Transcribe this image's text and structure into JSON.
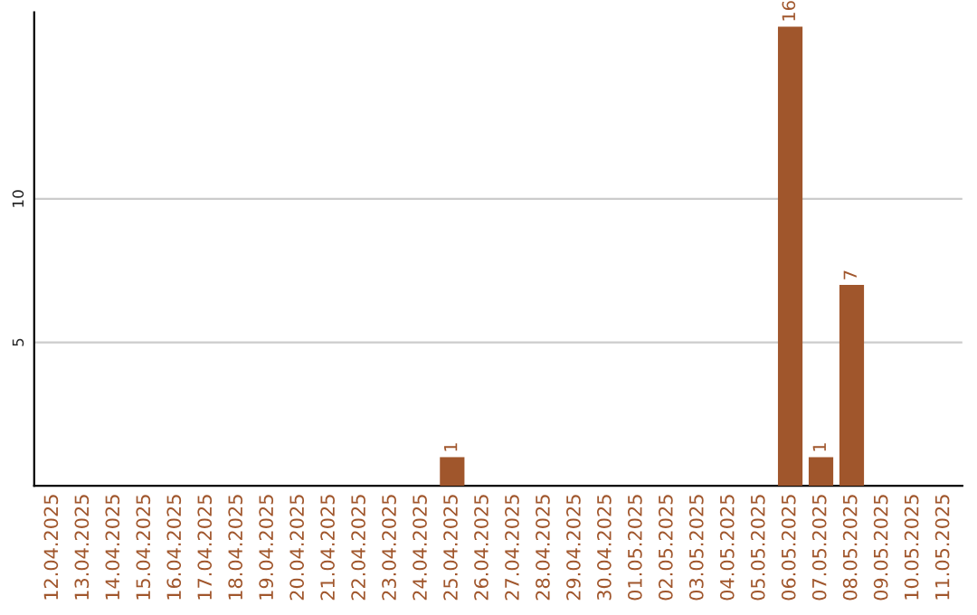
{
  "chart_data": {
    "type": "bar",
    "categories": [
      "12.04.2025",
      "13.04.2025",
      "14.04.2025",
      "15.04.2025",
      "16.04.2025",
      "17.04.2025",
      "18.04.2025",
      "19.04.2025",
      "20.04.2025",
      "21.04.2025",
      "22.04.2025",
      "23.04.2025",
      "24.04.2025",
      "25.04.2025",
      "26.04.2025",
      "27.04.2025",
      "28.04.2025",
      "29.04.2025",
      "30.04.2025",
      "01.05.2025",
      "02.05.2025",
      "03.05.2025",
      "04.05.2025",
      "05.05.2025",
      "06.05.2025",
      "07.05.2025",
      "08.05.2025",
      "09.05.2025",
      "10.05.2025",
      "11.05.2025"
    ],
    "values": [
      0,
      0,
      0,
      0,
      0,
      0,
      0,
      0,
      0,
      0,
      0,
      0,
      0,
      1,
      0,
      0,
      0,
      0,
      0,
      0,
      0,
      0,
      0,
      0,
      16,
      1,
      7,
      0,
      0,
      0
    ],
    "value_labels": [
      null,
      null,
      null,
      null,
      null,
      null,
      null,
      null,
      null,
      null,
      null,
      null,
      null,
      "1",
      null,
      null,
      null,
      null,
      null,
      null,
      null,
      null,
      null,
      null,
      "16",
      "1",
      "7",
      null,
      null,
      null
    ],
    "color": "#a0562c",
    "ylim": [
      0,
      16.5
    ],
    "yticks": [
      5,
      10
    ],
    "grid": "y",
    "legend": false
  }
}
